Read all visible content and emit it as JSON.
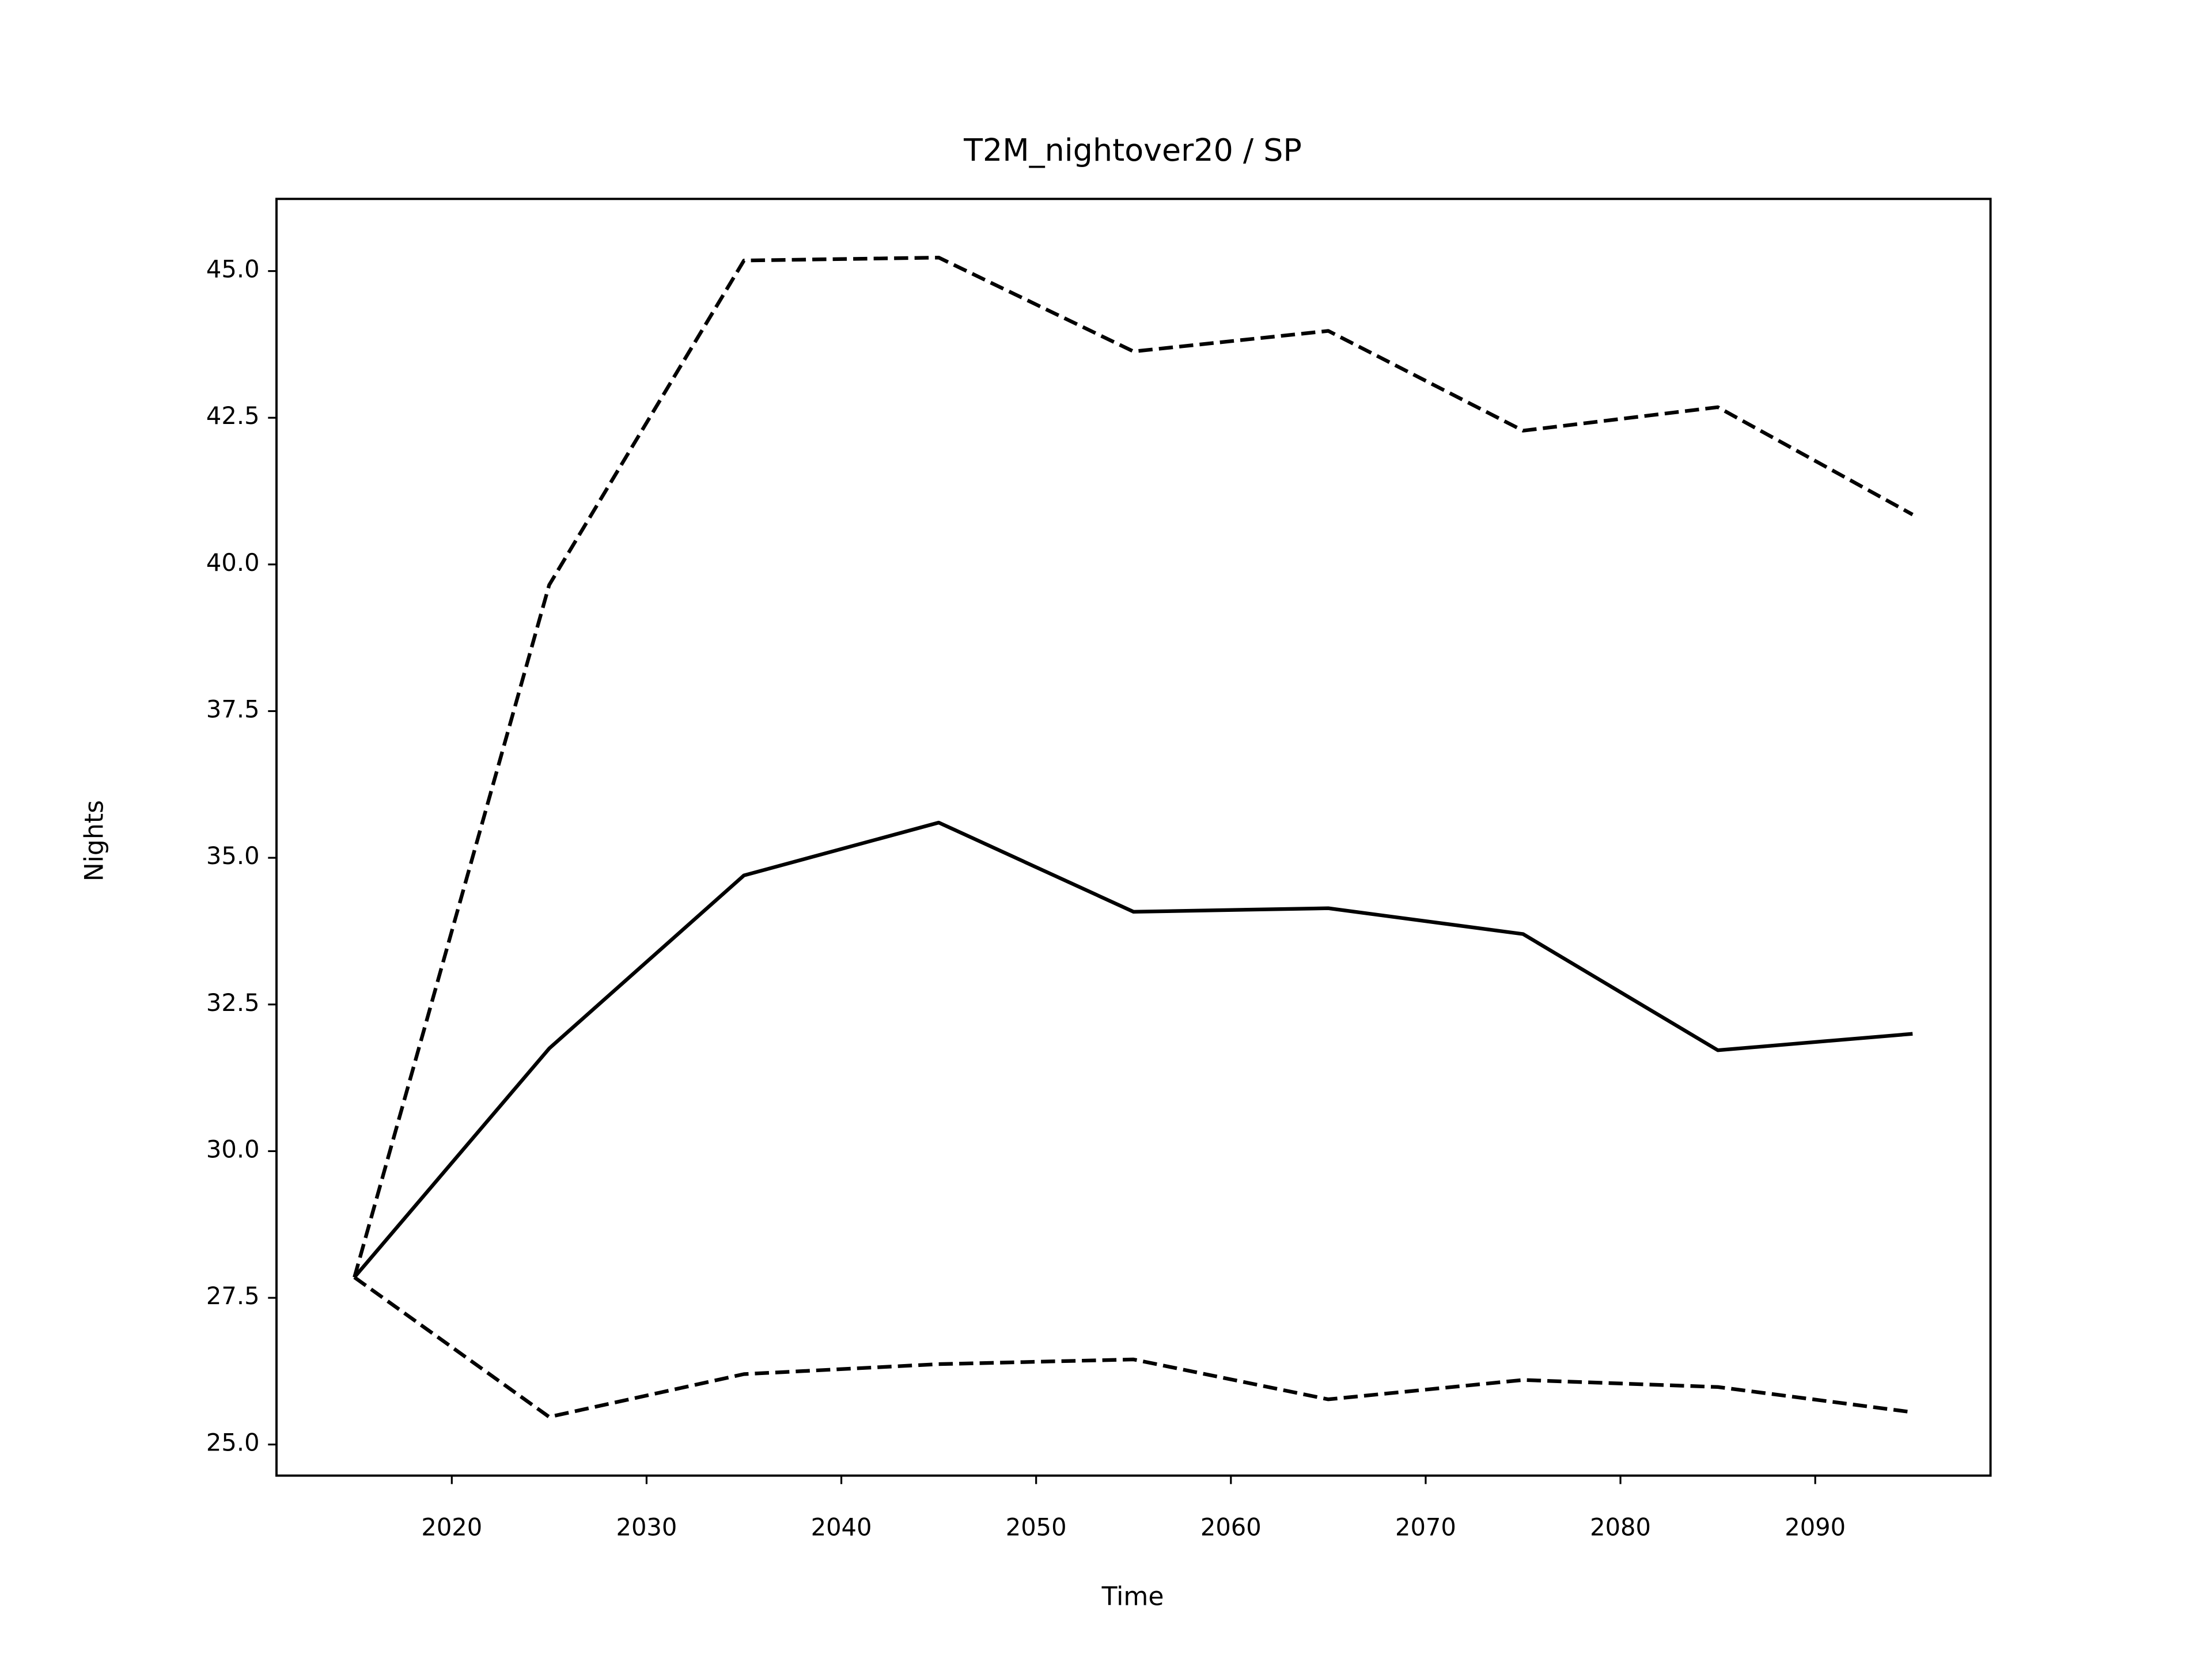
{
  "chart_data": {
    "type": "line",
    "title": "T2M_nightover20 / SP",
    "x_label": "Time",
    "y_label": "Nights",
    "x": [
      2015,
      2025,
      2035,
      2045,
      2055,
      2065,
      2075,
      2085,
      2095
    ],
    "series": [
      {
        "color": "#000000",
        "linestyle": "solid",
        "values": [
          27.85,
          31.75,
          34.7,
          35.6,
          34.08,
          34.14,
          33.7,
          31.72,
          32.0
        ]
      },
      {
        "color": "#000000",
        "linestyle": "dashed",
        "values": [
          27.85,
          39.65,
          45.18,
          45.23,
          43.63,
          43.98,
          42.28,
          42.68,
          40.85
        ]
      },
      {
        "color": "#000000",
        "linestyle": "dashed",
        "values": [
          27.85,
          25.47,
          26.2,
          26.37,
          26.45,
          25.77,
          26.1,
          25.98,
          25.55
        ]
      }
    ],
    "xlim": [
      2011,
      2099
    ],
    "ylim": [
      24.47,
      46.23
    ],
    "xticks": [
      2020,
      2030,
      2040,
      2050,
      2060,
      2070,
      2080,
      2090
    ],
    "yticks": [
      {
        "value": 25,
        "label": "25.0"
      },
      {
        "value": 27.5,
        "label": "27.5"
      },
      {
        "value": 30,
        "label": "30.0"
      },
      {
        "value": 32.5,
        "label": "32.5"
      },
      {
        "value": 35,
        "label": "35.0"
      },
      {
        "value": 37.5,
        "label": "37.5"
      },
      {
        "value": 40,
        "label": "40.0"
      },
      {
        "value": 42.5,
        "label": "42.5"
      },
      {
        "value": 45,
        "label": "45.0"
      }
    ],
    "grid": false
  }
}
